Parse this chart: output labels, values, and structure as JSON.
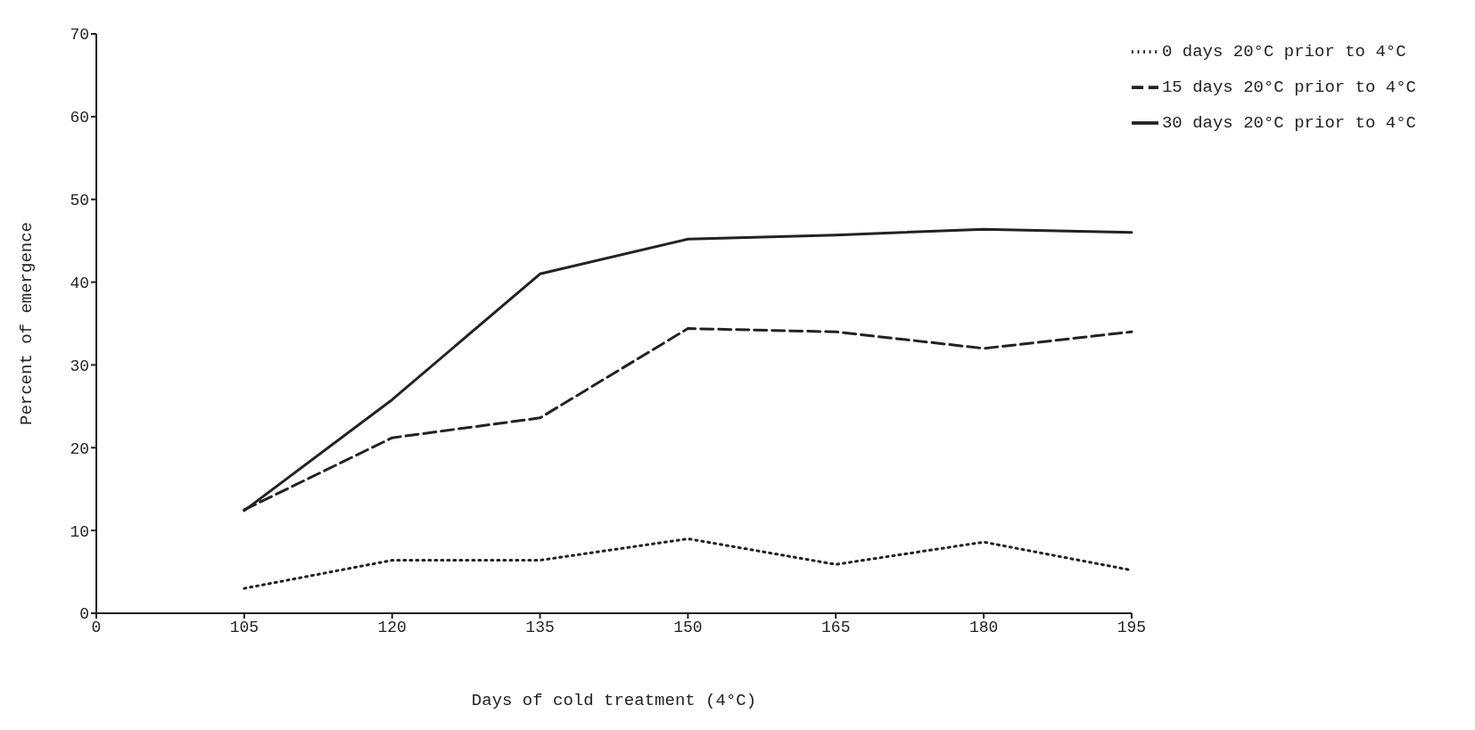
{
  "chart_data": {
    "type": "line",
    "xlabel": "Days of cold treatment (4°C)",
    "ylabel": "Percent of emergence",
    "categories": [
      "0",
      "105",
      "120",
      "135",
      "150",
      "165",
      "180",
      "195"
    ],
    "series": [
      {
        "name": "30 days 20°C prior to 4°C",
        "color": "#222222",
        "line_style": "solid",
        "values": [
          null,
          12.4,
          25.8,
          41,
          45.2,
          45.7,
          46.4,
          46
        ]
      },
      {
        "name": "15 days 20°C prior to 4°C",
        "color": "#222222",
        "line_style": "dashed",
        "values": [
          null,
          12.5,
          21.2,
          23.6,
          34.4,
          34,
          32,
          34
        ]
      },
      {
        "name": "0 days 20°C prior to 4°C",
        "color": "#222222",
        "line_style": "dotted",
        "values": [
          null,
          3,
          6.4,
          6.4,
          9,
          5.9,
          8.6,
          5.2
        ]
      }
    ],
    "ylim": [
      0,
      70
    ],
    "yticks": [
      0,
      10,
      20,
      30,
      40,
      50,
      60,
      70
    ],
    "grid": false,
    "legend": "top right",
    "marker": "none"
  }
}
